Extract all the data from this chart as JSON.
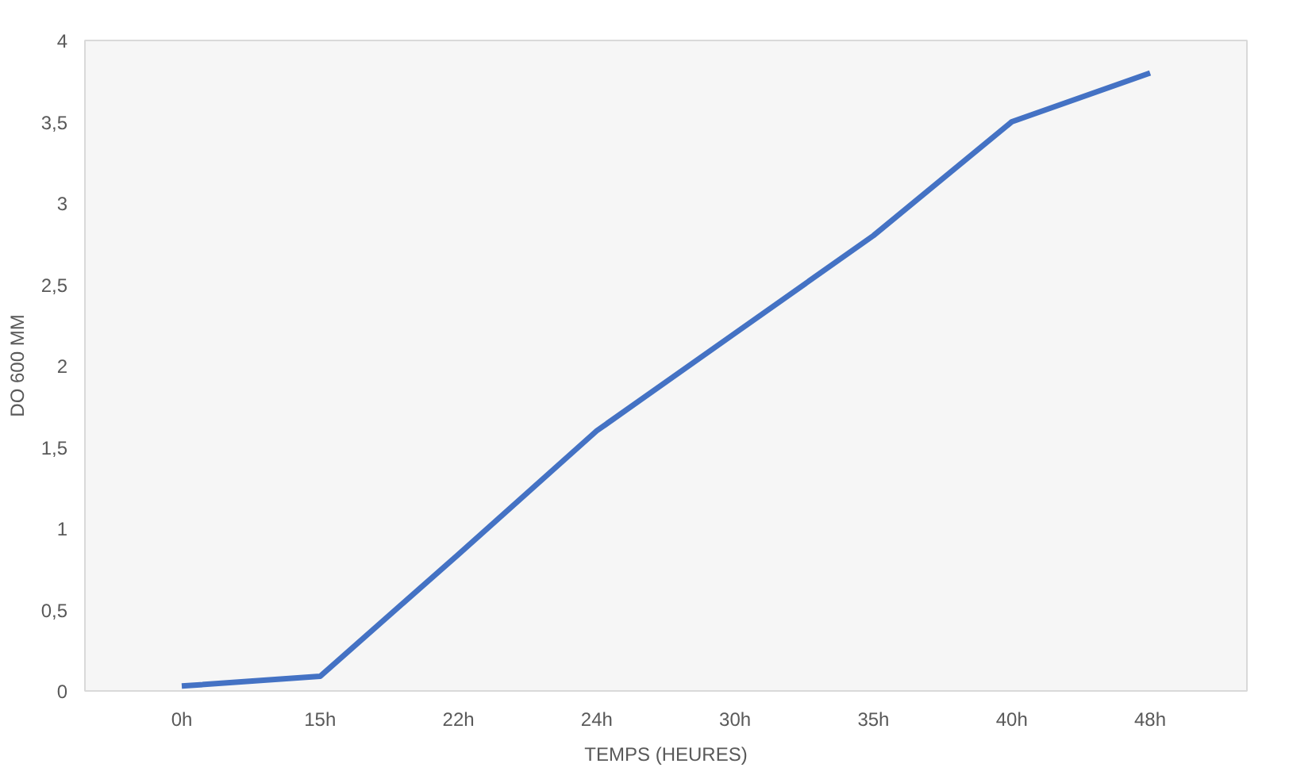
{
  "chart_data": {
    "type": "line",
    "xlabel": "TEMPS (HEURES)",
    "ylabel": "DO 600 MM",
    "categories": [
      "0h",
      "15h",
      "22h",
      "24h",
      "30h",
      "35h",
      "40h",
      "48h"
    ],
    "series": [
      {
        "color": "#4472c4",
        "values": [
          0.03,
          0.09,
          0.84,
          1.6,
          2.2,
          2.8,
          3.5,
          3.8
        ]
      }
    ],
    "ylim": [
      0,
      4
    ],
    "yticks": [
      0,
      {
        "value": 0.5,
        "label": "0,5"
      },
      1,
      {
        "value": 1.5,
        "label": "1,5"
      },
      2,
      {
        "value": 2.5,
        "label": "2,5"
      },
      3,
      {
        "value": 3.5,
        "label": "3,5"
      },
      4
    ],
    "grid": false,
    "marker": "none",
    "line_style": "solid"
  }
}
